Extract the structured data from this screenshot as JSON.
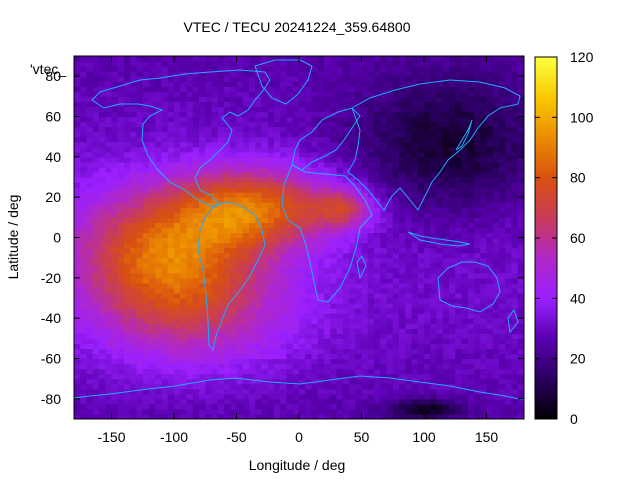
{
  "chart_data": {
    "type": "heatmap",
    "title": "VTEC / TECU 20241224_359.64800",
    "xlabel": "Longitude / deg",
    "ylabel": "Latitude / deg",
    "key_label": "'vtec_",
    "xlim": [
      -180,
      180
    ],
    "ylim": [
      -90,
      90
    ],
    "xticks": [
      -150,
      -100,
      -50,
      0,
      50,
      100,
      150
    ],
    "yticks": [
      -80,
      -60,
      -40,
      -20,
      0,
      20,
      40,
      60,
      80
    ],
    "colorbar": {
      "min": 0,
      "max": 120,
      "ticks": [
        0,
        20,
        40,
        60,
        80,
        100,
        120
      ],
      "palette": [
        "#000000",
        "#2a0060",
        "#5a00b0",
        "#9a20ff",
        "#b028c8",
        "#c83c5a",
        "#d85010",
        "#ec8c00",
        "#f8c800",
        "#ffff40"
      ]
    },
    "grid_resolution_deg": {
      "lon": 5,
      "lat": 2.5
    },
    "field_features": [
      {
        "name": "equatorial-anomaly-americas-south",
        "lon": -110,
        "lat": -5,
        "peak_tecu": 74,
        "lon_width": 70,
        "lat_width": 30
      },
      {
        "name": "equatorial-anomaly-atlantic-north",
        "lon": -35,
        "lat": 15,
        "peak_tecu": 78,
        "lon_width": 60,
        "lat_width": 20
      },
      {
        "name": "south-america-crest",
        "lon": -85,
        "lat": -35,
        "peak_tecu": 58,
        "lon_width": 80,
        "lat_width": 30
      },
      {
        "name": "africa-arm",
        "lon": 35,
        "lat": 15,
        "peak_tecu": 60,
        "lon_width": 25,
        "lat_width": 10
      },
      {
        "name": "asia-night-trough",
        "lon": 120,
        "lat": 45,
        "peak_tecu": 5,
        "lon_width": 80,
        "lat_width": 35
      },
      {
        "name": "south-pacific-minimum",
        "lon": 100,
        "lat": -85,
        "peak_tecu": 5,
        "lon_width": 30,
        "lat_width": 5
      }
    ],
    "background_tecu": 28,
    "legend": "colorbar-right",
    "grid": false,
    "overlay": "continent-outlines",
    "overlay_color": "#22aaff"
  }
}
